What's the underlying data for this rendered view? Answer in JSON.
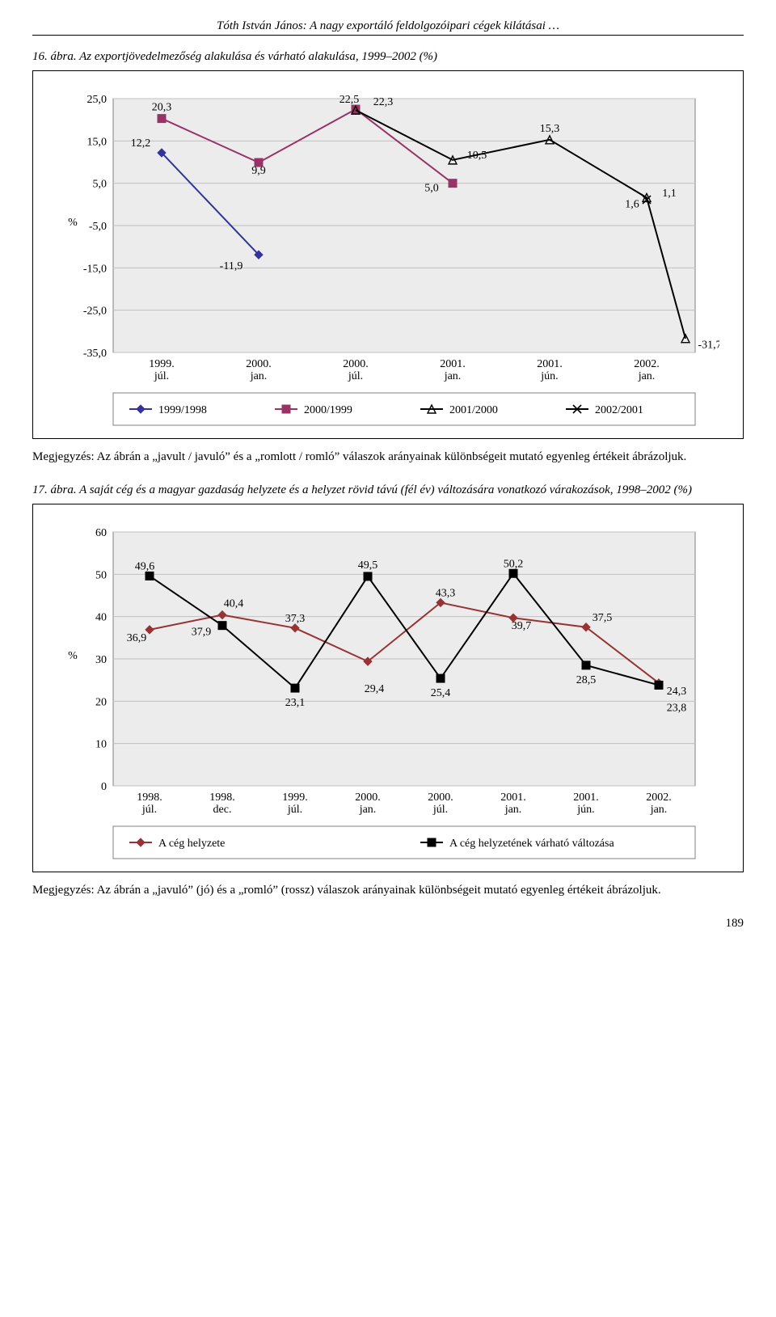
{
  "header": "Tóth István János: A nagy exportáló feldolgozóipari cégek kilátásai …",
  "page_number": "189",
  "fig1": {
    "caption": "16. ábra. Az exportjövedelmezőség alakulása és várható alakulása, 1999–2002 (%)",
    "note": "Megjegyzés: Az ábrán a „javult / javuló” és a „romlott / romló” válaszok arányainak különbségeit mutató egyenleg értékeit ábrázoljuk.",
    "type": "line",
    "y_axis_label": "%",
    "ylim": [
      -35,
      25
    ],
    "ytick_step": 10,
    "yticks": [
      -35,
      -25,
      -15,
      -5,
      5,
      15,
      25
    ],
    "ytick_labels": [
      "-35,0",
      "-25,0",
      "-15,0",
      "-5,0",
      "5,0",
      "15,0",
      "25,0"
    ],
    "categories": [
      "1999. júl.",
      "2000. jan.",
      "2000. júl.",
      "2001. jan.",
      "2001. jún.",
      "2002. jan."
    ],
    "grid_color": "#c0c0c0",
    "plot_bg": "#ececec",
    "series": [
      {
        "name": "1999/1998",
        "marker": "diamond",
        "color": "#333399",
        "values": [
          12.2,
          -11.9,
          null,
          null,
          null,
          null
        ],
        "labels": [
          "12,2",
          "-11,9",
          null,
          null,
          null,
          null
        ]
      },
      {
        "name": "2000/1999",
        "marker": "square",
        "color": "#993366",
        "values": [
          20.3,
          9.9,
          22.5,
          5.0,
          null,
          null
        ],
        "labels": [
          "20,3",
          "9,9",
          "22,5",
          "5,0",
          null,
          null
        ]
      },
      {
        "name": "2001/2000",
        "marker": "triangle",
        "color": "#000000",
        "values": [
          null,
          null,
          22.3,
          10.5,
          15.3,
          1.6
        ],
        "labels": [
          null,
          null,
          "22,3",
          "10,5",
          "15,3",
          "1,6"
        ],
        "extra_point": {
          "x": 5.4,
          "value": -31.7,
          "label": "-31,7"
        }
      },
      {
        "name": "2002/2001",
        "marker": "x",
        "color": "#000000",
        "values": [
          null,
          null,
          null,
          null,
          null,
          1.1
        ],
        "labels": [
          null,
          null,
          null,
          null,
          null,
          "1,1"
        ]
      }
    ]
  },
  "fig2": {
    "caption": "17. ábra. A saját cég és a magyar gazdaság helyzete és a helyzet rövid távú (fél év) változására vonatkozó várakozások, 1998–2002 (%)",
    "note": "Megjegyzés: Az ábrán a „javuló” (jó) és a „romló” (rossz) válaszok arányainak különbségeit mutató egyenleg értékeit ábrázoljuk.",
    "type": "line",
    "y_axis_label": "%",
    "ylim": [
      0,
      60
    ],
    "ytick_step": 10,
    "yticks": [
      0,
      10,
      20,
      30,
      40,
      50,
      60
    ],
    "ytick_labels": [
      "0",
      "10",
      "20",
      "30",
      "40",
      "50",
      "60"
    ],
    "categories": [
      "1998. júl.",
      "1998. dec.",
      "1999. júl.",
      "2000. jan.",
      "2000. júl.",
      "2001. jan.",
      "2001. jún.",
      "2002. jan."
    ],
    "grid_color": "#c0c0c0",
    "plot_bg": "#ececec",
    "legend": [
      "A cég helyzete",
      "A cég helyzetének várható változása"
    ],
    "series": [
      {
        "name": "A cég helyzete",
        "marker": "diamond",
        "color": "#993333",
        "values": [
          36.9,
          40.4,
          37.3,
          29.4,
          43.3,
          39.7,
          37.5,
          24.3
        ],
        "labels": [
          "36,9",
          "40,4",
          "37,3",
          "29,4",
          "43,3",
          "39,7",
          "37,5",
          "24,3"
        ]
      },
      {
        "name": "A cég helyzetének várható változása",
        "marker": "square",
        "color": "#000000",
        "values": [
          49.6,
          37.9,
          23.1,
          49.5,
          25.4,
          50.2,
          28.5,
          23.8
        ],
        "labels": [
          "49,6",
          "37,9",
          "23,1",
          "49,5",
          "25,4",
          "50,2",
          "28,5",
          "23,8"
        ]
      }
    ]
  }
}
